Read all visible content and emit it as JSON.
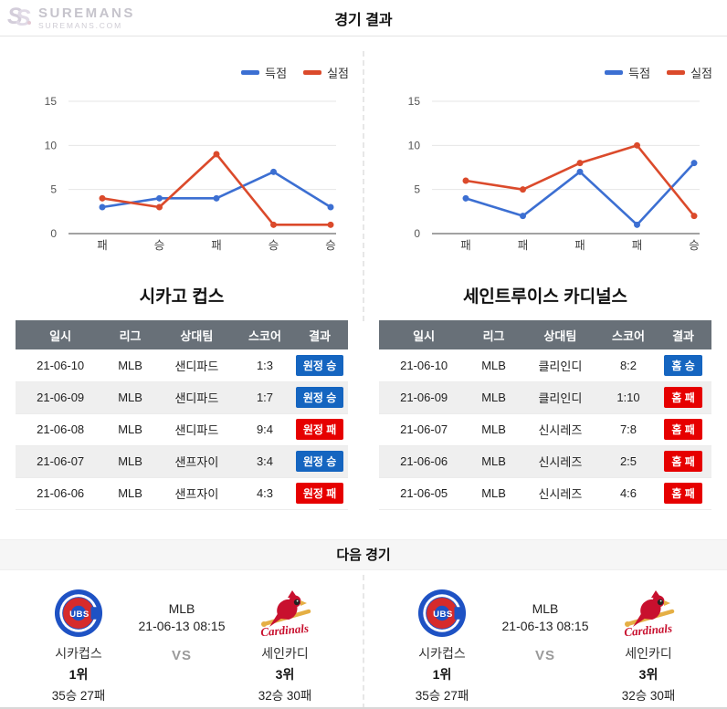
{
  "header": {
    "logo": {
      "brand": "SUREMANS",
      "domain": "SUREMANS.COM"
    },
    "title": "경기 결과"
  },
  "colors": {
    "scored": "#3C6FD2",
    "conceded": "#DB4A2B",
    "win": "#1565C0",
    "lose": "#E60000",
    "table_header_bg": "#687078"
  },
  "chart_data": [
    {
      "type": "line",
      "team": "시카고 컵스",
      "categories": [
        "패",
        "승",
        "패",
        "승",
        "승"
      ],
      "series": [
        {
          "name": "득점",
          "color": "#3C6FD2",
          "values": [
            3,
            4,
            4,
            7,
            3
          ]
        },
        {
          "name": "실점",
          "color": "#DB4A2B",
          "values": [
            4,
            3,
            9,
            1,
            1
          ]
        }
      ],
      "ylim": [
        0,
        15
      ],
      "yticks": [
        0,
        5,
        10,
        15
      ],
      "grid": true,
      "legend_position": "top-right"
    },
    {
      "type": "line",
      "team": "세인트루이스 카디널스",
      "categories": [
        "패",
        "패",
        "패",
        "패",
        "승"
      ],
      "series": [
        {
          "name": "득점",
          "color": "#3C6FD2",
          "values": [
            4,
            2,
            7,
            1,
            8
          ]
        },
        {
          "name": "실점",
          "color": "#DB4A2B",
          "values": [
            6,
            5,
            8,
            10,
            2
          ]
        }
      ],
      "ylim": [
        0,
        15
      ],
      "yticks": [
        0,
        5,
        10,
        15
      ],
      "grid": true,
      "legend_position": "top-right"
    }
  ],
  "teams": [
    {
      "title": "시카고 컵스",
      "table": {
        "headers": [
          "일시",
          "리그",
          "상대팀",
          "스코어",
          "결과"
        ],
        "rows": [
          {
            "date": "21-06-10",
            "league": "MLB",
            "opponent": "샌디파드",
            "score": "1:3",
            "result": "원정 승",
            "result_type": "win"
          },
          {
            "date": "21-06-09",
            "league": "MLB",
            "opponent": "샌디파드",
            "score": "1:7",
            "result": "원정 승",
            "result_type": "win"
          },
          {
            "date": "21-06-08",
            "league": "MLB",
            "opponent": "샌디파드",
            "score": "9:4",
            "result": "원정 패",
            "result_type": "lose"
          },
          {
            "date": "21-06-07",
            "league": "MLB",
            "opponent": "샌프자이",
            "score": "3:4",
            "result": "원정 승",
            "result_type": "win"
          },
          {
            "date": "21-06-06",
            "league": "MLB",
            "opponent": "샌프자이",
            "score": "4:3",
            "result": "원정 패",
            "result_type": "lose"
          }
        ]
      }
    },
    {
      "title": "세인트루이스 카디널스",
      "table": {
        "headers": [
          "일시",
          "리그",
          "상대팀",
          "스코어",
          "결과"
        ],
        "rows": [
          {
            "date": "21-06-10",
            "league": "MLB",
            "opponent": "클리인디",
            "score": "8:2",
            "result": "홈 승",
            "result_type": "win"
          },
          {
            "date": "21-06-09",
            "league": "MLB",
            "opponent": "클리인디",
            "score": "1:10",
            "result": "홈 패",
            "result_type": "lose"
          },
          {
            "date": "21-06-07",
            "league": "MLB",
            "opponent": "신시레즈",
            "score": "7:8",
            "result": "홈 패",
            "result_type": "lose"
          },
          {
            "date": "21-06-06",
            "league": "MLB",
            "opponent": "신시레즈",
            "score": "2:5",
            "result": "홈 패",
            "result_type": "lose"
          },
          {
            "date": "21-06-05",
            "league": "MLB",
            "opponent": "신시레즈",
            "score": "4:6",
            "result": "홈 패",
            "result_type": "lose"
          }
        ]
      }
    }
  ],
  "next_match": {
    "section_title": "다음 경기",
    "league": "MLB",
    "datetime": "21-06-13 08:15",
    "vs_label": "VS",
    "home": {
      "name": "시카컵스",
      "rank": "1위",
      "record": "35승 27패",
      "logo": "cubs-logo"
    },
    "away": {
      "name": "세인카디",
      "rank": "3위",
      "record": "32승 30패",
      "logo": "cardinals-logo"
    }
  }
}
